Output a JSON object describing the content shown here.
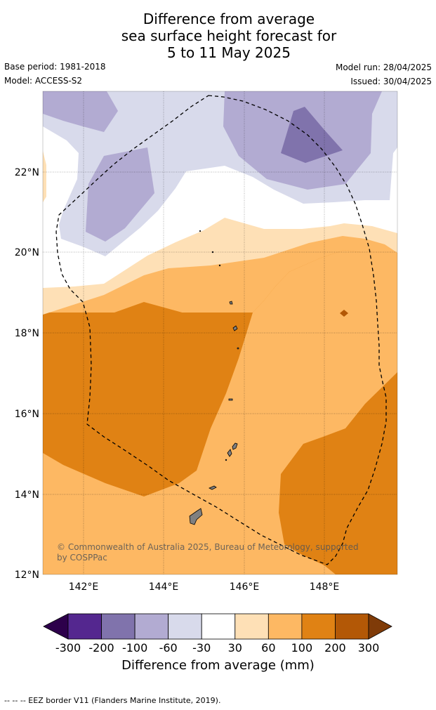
{
  "title": {
    "line1": "Difference from average",
    "line2": "sea surface height forecast for",
    "line3": "5 to 11 May 2025"
  },
  "meta": {
    "base_period": "Base period: 1981-2018",
    "model": "Model: ACCESS-S2",
    "model_run": "Model run: 28/04/2025",
    "issued": "Issued: 30/04/2025"
  },
  "map": {
    "lon_range": [
      141,
      149.8
    ],
    "lat_range": [
      12,
      24
    ],
    "lon_ticks": [
      "142°E",
      "144°E",
      "146°E",
      "148°E"
    ],
    "lat_ticks": [
      "22°N",
      "20°N",
      "18°N",
      "16°N",
      "14°N",
      "12°N"
    ],
    "copyright": "© Commonwealth of Australia 2025, Bureau of Meteorology, supported by COSPPac"
  },
  "legend": {
    "title": "Difference from average (mm)",
    "ticks": [
      "-300",
      "-200",
      "-100",
      "-60",
      "-30",
      "30",
      "60",
      "100",
      "200",
      "300"
    ],
    "colors": [
      "#54278f",
      "#8073ac",
      "#b2abd2",
      "#d8daeb",
      "#ffffff",
      "#fee0b6",
      "#fdb863",
      "#e08214",
      "#b35806"
    ],
    "extend_low": "#2d004b",
    "extend_high": "#7f3b08"
  },
  "footer": {
    "eez_note": "--  --  -- EEZ border V11 (Flanders Marine Institute, 2019)."
  }
}
